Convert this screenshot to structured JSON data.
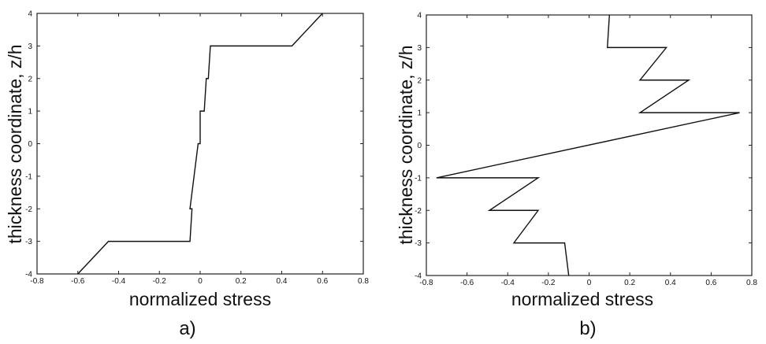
{
  "chart_data": [
    {
      "type": "line",
      "caption": "a)",
      "xlabel": "normalized stress",
      "ylabel": "thickness coordinate, z/h",
      "xlim": [
        -0.8,
        0.8
      ],
      "ylim": [
        -4,
        4
      ],
      "x_ticks": [
        "-0.8",
        "-0.6",
        "-0.4",
        "-0.2",
        "0",
        "0.2",
        "0.4",
        "0.6",
        "0.8"
      ],
      "y_ticks": [
        "-4",
        "-3",
        "-2",
        "-1",
        "0",
        "1",
        "2",
        "3",
        "4"
      ],
      "grid": false,
      "series": [
        {
          "x": [
            -0.6,
            -0.45,
            -0.05,
            -0.04,
            -0.05,
            -0.03,
            -0.03,
            -0.01,
            -0.01,
            0.0,
            0.0,
            0.02,
            0.02,
            0.03,
            0.03,
            0.04,
            0.05,
            0.45,
            0.6
          ],
          "y": [
            -4,
            -3,
            -3,
            -2,
            -2,
            -1,
            -1,
            0,
            0,
            0,
            1,
            1,
            1,
            2,
            2,
            2,
            3,
            3,
            4
          ]
        }
      ]
    },
    {
      "type": "line",
      "caption": "b)",
      "xlabel": "normalized stress",
      "ylabel": "thickness coordinate, z/h",
      "xlim": [
        -0.8,
        0.8
      ],
      "ylim": [
        -4,
        4
      ],
      "x_ticks": [
        "-0.8",
        "-0.6",
        "-0.4",
        "-0.2",
        "0",
        "0.2",
        "0.4",
        "0.6",
        "0.8"
      ],
      "y_ticks": [
        "-4",
        "-3",
        "-2",
        "-1",
        "0",
        "1",
        "2",
        "3",
        "4"
      ],
      "grid": false,
      "series": [
        {
          "x": [
            -0.1,
            -0.12,
            -0.37,
            -0.25,
            -0.49,
            -0.25,
            -0.75,
            0.74,
            0.25,
            0.49,
            0.25,
            0.38,
            0.09,
            0.1
          ],
          "y": [
            -4,
            -3,
            -3,
            -2,
            -2,
            -1,
            -1,
            1,
            1,
            2,
            2,
            3,
            3,
            4
          ]
        }
      ]
    }
  ]
}
